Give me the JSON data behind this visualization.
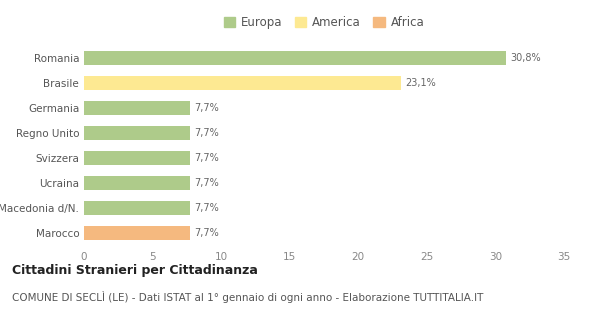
{
  "categories": [
    "Romania",
    "Brasile",
    "Germania",
    "Regno Unito",
    "Svizzera",
    "Ucraina",
    "Macedonia d/N.",
    "Marocco"
  ],
  "values": [
    30.8,
    23.1,
    7.7,
    7.7,
    7.7,
    7.7,
    7.7,
    7.7
  ],
  "labels": [
    "30,8%",
    "23,1%",
    "7,7%",
    "7,7%",
    "7,7%",
    "7,7%",
    "7,7%",
    "7,7%"
  ],
  "continents": [
    "Europa",
    "America",
    "Europa",
    "Europa",
    "Europa",
    "Europa",
    "Europa",
    "Africa"
  ],
  "colors": {
    "Europa": "#aecb8a",
    "America": "#fde992",
    "Africa": "#f5b97f"
  },
  "legend_order": [
    "Europa",
    "America",
    "Africa"
  ],
  "xlim": [
    0,
    35
  ],
  "xticks": [
    0,
    5,
    10,
    15,
    20,
    25,
    30,
    35
  ],
  "title": "Cittadini Stranieri per Cittadinanza",
  "subtitle": "COMUNE DI SECLÌ (LE) - Dati ISTAT al 1° gennaio di ogni anno - Elaborazione TUTTITALIA.IT",
  "title_fontsize": 9,
  "subtitle_fontsize": 7.5,
  "label_fontsize": 7,
  "tick_fontsize": 7.5,
  "legend_fontsize": 8.5,
  "bar_height": 0.55,
  "background_color": "#ffffff"
}
